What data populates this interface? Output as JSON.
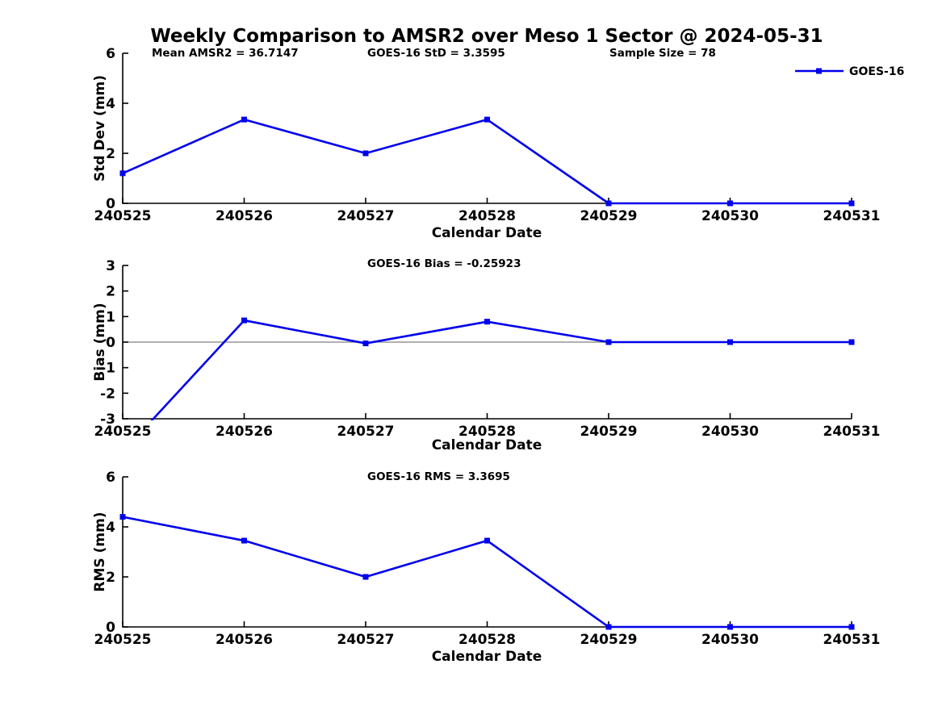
{
  "title": "Weekly Comparison to AMSR2 over Meso 1 Sector @ 2024-05-31",
  "legend": {
    "label": "GOES-16",
    "marker": "square",
    "position": "top-right"
  },
  "colors": {
    "series": "#0000ee",
    "axis": "#000000",
    "zero_line": "#808080",
    "background": "#ffffff",
    "text": "#000000"
  },
  "chart_data": [
    {
      "id": "std-dev",
      "type": "line",
      "categories": [
        "240525",
        "240526",
        "240527",
        "240528",
        "240529",
        "240530",
        "240531"
      ],
      "series": [
        {
          "name": "GOES-16",
          "values": [
            1.2,
            3.35,
            2.0,
            3.35,
            0.0,
            0.0,
            0.0
          ]
        }
      ],
      "title_annotations": [
        {
          "text": "Mean AMSR2 = 36.7147"
        },
        {
          "text": "GOES-16 StD = 3.3595"
        },
        {
          "text": "Sample Size = 78"
        }
      ],
      "xlabel": "Calendar Date",
      "ylabel": "Std Dev (mm)",
      "ylim": [
        0,
        6
      ],
      "yticks": [
        0,
        2,
        4,
        6
      ],
      "grid": false,
      "zero_line": false,
      "legend_shown": true
    },
    {
      "id": "bias",
      "type": "line",
      "categories": [
        "240525",
        "240526",
        "240527",
        "240528",
        "240529",
        "240530",
        "240531"
      ],
      "series": [
        {
          "name": "GOES-16",
          "values": [
            -4.3,
            0.85,
            -0.05,
            0.8,
            0.0,
            0.0,
            0.0
          ]
        }
      ],
      "title_annotations": [
        {
          "text": "GOES-16 Bias  = -0.25923"
        }
      ],
      "xlabel": "Calendar Date",
      "ylabel": "Bias (mm)",
      "ylim": [
        -3,
        3
      ],
      "yticks": [
        -3,
        -2,
        -1,
        0,
        1,
        2,
        3
      ],
      "grid": false,
      "zero_line": true,
      "legend_shown": false
    },
    {
      "id": "rms",
      "type": "line",
      "categories": [
        "240525",
        "240526",
        "240527",
        "240528",
        "240529",
        "240530",
        "240531"
      ],
      "series": [
        {
          "name": "GOES-16",
          "values": [
            4.4,
            3.45,
            2.0,
            3.45,
            0.0,
            0.0,
            0.0
          ]
        }
      ],
      "title_annotations": [
        {
          "text": "GOES-16 RMS = 3.3695"
        }
      ],
      "xlabel": "Calendar Date",
      "ylabel": "RMS (mm)",
      "ylim": [
        0,
        6
      ],
      "yticks": [
        0,
        2,
        4,
        6
      ],
      "grid": false,
      "zero_line": false,
      "legend_shown": false
    }
  ]
}
